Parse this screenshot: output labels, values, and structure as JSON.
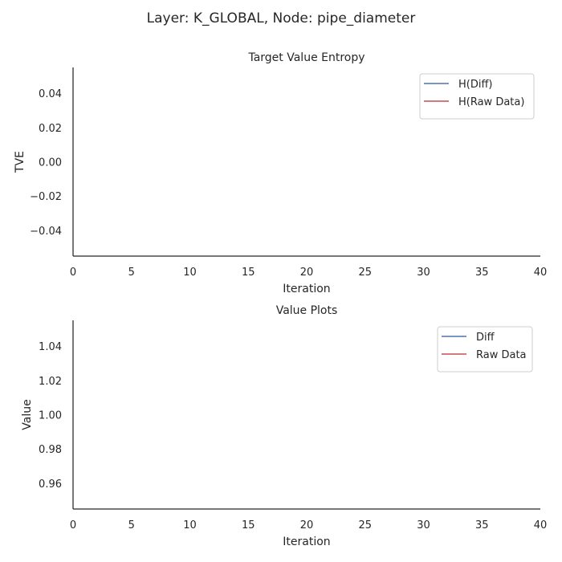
{
  "figure": {
    "suptitle": "Layer: K_GLOBAL, Node: pipe_diameter"
  },
  "chart_data": [
    {
      "type": "line",
      "title": "Target Value Entropy",
      "xlabel": "Iteration",
      "ylabel": "TVE",
      "xlim": [
        0,
        40
      ],
      "ylim": [
        -0.055,
        0.055
      ],
      "xticks": [
        0,
        5,
        10,
        15,
        20,
        25,
        30,
        35,
        40
      ],
      "yticks": [
        -0.04,
        -0.02,
        0.0,
        0.02,
        0.04
      ],
      "ytick_labels": [
        "−0.04",
        "−0.02",
        "0.00",
        "0.02",
        "0.04"
      ],
      "grid": false,
      "legend_position": "top-right",
      "series": [
        {
          "name": "H(Diff)",
          "color": "#4c72b0",
          "x": [],
          "y": []
        },
        {
          "name": "H(Raw Data)",
          "color": "#c44e52",
          "x": [],
          "y": []
        }
      ]
    },
    {
      "type": "line",
      "title": "Value Plots",
      "xlabel": "Iteration",
      "ylabel": "Value",
      "xlim": [
        0,
        40
      ],
      "ylim": [
        0.945,
        1.055
      ],
      "xticks": [
        0,
        5,
        10,
        15,
        20,
        25,
        30,
        35,
        40
      ],
      "yticks": [
        0.96,
        0.98,
        1.0,
        1.02,
        1.04
      ],
      "ytick_labels": [
        "0.96",
        "0.98",
        "1.00",
        "1.02",
        "1.04"
      ],
      "grid": false,
      "legend_position": "top-right",
      "series": [
        {
          "name": "Diff",
          "color": "#4c72b0",
          "x": [],
          "y": []
        },
        {
          "name": "Raw Data",
          "color": "#c44e52",
          "x": [],
          "y": []
        }
      ]
    }
  ]
}
